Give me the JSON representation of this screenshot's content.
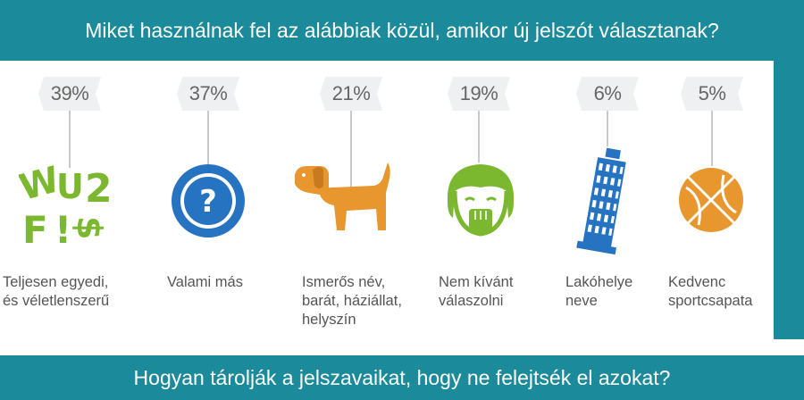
{
  "header": {
    "title": "Miket használnak fel az alábbiak közül, amikor új jelszót választanak?"
  },
  "footer": {
    "title": "Hogyan tárolják a jelszavaikat, hogy ne felejtsék el azokat?"
  },
  "chart_data": {
    "type": "bar",
    "title": "Miket használnak fel az alábbiak közül, amikor új jelszót választanak?",
    "categories": [
      "Teljesen egyedi, és véletlenszerű",
      "Valami más",
      "Ismerős név, barát, háziállat, helyszín",
      "Nem kívánt válaszolni",
      "Lakóhelye neve",
      "Kedvenc sportcsapata"
    ],
    "values": [
      39,
      37,
      21,
      19,
      6,
      5
    ],
    "value_labels": [
      "39%",
      "37%",
      "21%",
      "19%",
      "6%",
      "5%"
    ],
    "unit": "%"
  },
  "items": [
    {
      "pct": "39%",
      "label_lines": [
        "Teljesen egyedi,",
        "és véletlenszerű"
      ],
      "icon": "random-characters-icon",
      "color": "#7cb82f"
    },
    {
      "pct": "37%",
      "label_lines": [
        "Valami más"
      ],
      "icon": "question-mark-icon",
      "color": "#2673c2"
    },
    {
      "pct": "21%",
      "label_lines": [
        "Ismerős név,",
        "barát, háziállat,",
        "helyszín"
      ],
      "icon": "dog-icon",
      "color": "#e8962e"
    },
    {
      "pct": "19%",
      "label_lines": [
        "Nem kívánt",
        "válaszolni"
      ],
      "icon": "girl-hand-over-mouth-icon",
      "color": "#7cb82f"
    },
    {
      "pct": "6%",
      "label_lines": [
        "Lakóhelye",
        "neve"
      ],
      "icon": "leaning-tower-icon",
      "color": "#2673c2"
    },
    {
      "pct": "5%",
      "label_lines": [
        "Kedvenc",
        "sportcsapata"
      ],
      "icon": "basketball-icon",
      "color": "#e8962e"
    }
  ],
  "colors": {
    "banner": "#1b8a9a",
    "tag": "#eef0f1",
    "text": "#555555"
  },
  "icon_glyphs": {
    "question": "?",
    "random_chars": [
      "W",
      "U",
      "2",
      "F",
      "!",
      "$"
    ]
  }
}
